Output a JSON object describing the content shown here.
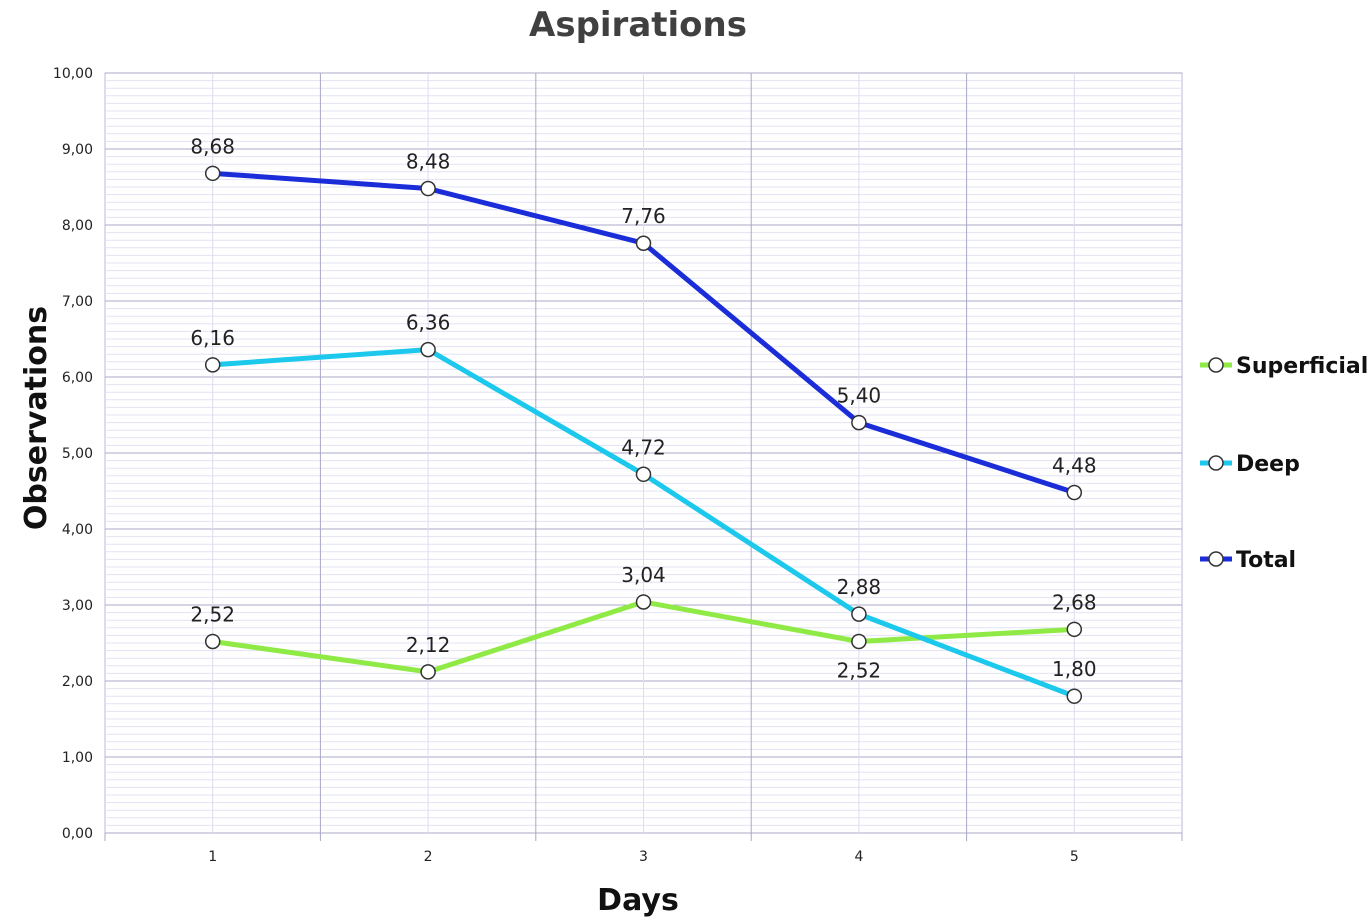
{
  "chart_data": {
    "type": "line",
    "title": "Aspirations",
    "xlabel": "Days",
    "ylabel": "Observations",
    "x": [
      "1",
      "2",
      "3",
      "4",
      "5"
    ],
    "ylim": [
      0,
      10
    ],
    "yticks": [
      "0,00",
      "1,00",
      "2,00",
      "3,00",
      "4,00",
      "5,00",
      "6,00",
      "7,00",
      "8,00",
      "9,00",
      "10,00"
    ],
    "grid": true,
    "legend_position": "right",
    "series": [
      {
        "name": "Superficial",
        "color": "#8FEA45",
        "values": [
          2.52,
          2.12,
          3.04,
          2.52,
          2.68
        ],
        "labels": [
          "2,52",
          "2,12",
          "3,04",
          "2,52",
          "2,68"
        ]
      },
      {
        "name": "Deep",
        "color": "#1CC8EC",
        "values": [
          6.16,
          6.36,
          4.72,
          2.88,
          1.8
        ],
        "labels": [
          "6,16",
          "6,36",
          "4,72",
          "2,88",
          "1,80"
        ]
      },
      {
        "name": "Total",
        "color": "#1A2DD8",
        "values": [
          8.68,
          8.48,
          7.76,
          5.4,
          4.48
        ],
        "labels": [
          "8,68",
          "8,48",
          "7,76",
          "5,40",
          "4,48"
        ]
      }
    ]
  }
}
